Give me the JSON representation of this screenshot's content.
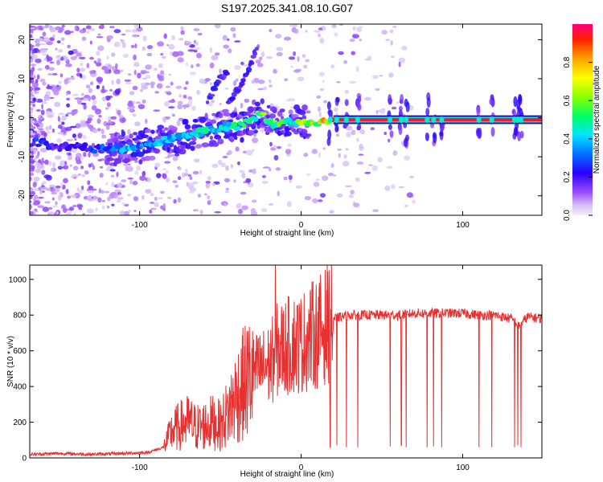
{
  "title": "S197.2025.341.08.10.G07",
  "chart_data": [
    {
      "type": "heatmap",
      "name": "spectrogram",
      "title": "S197.2025.341.08.10.G07",
      "xlabel": "Height of straight line (km)",
      "ylabel": "Frequency (Hz)",
      "xlim": [
        -168,
        149
      ],
      "ylim": [
        -25,
        24
      ],
      "xticks": [
        -100,
        0,
        100
      ],
      "yticks": [
        -20,
        -10,
        0,
        10,
        20
      ],
      "ridge": {
        "x": [
          -165,
          -150,
          -140,
          -130,
          -115,
          -105,
          -95,
          -85,
          -75,
          -65,
          -55,
          -45,
          -38,
          -30,
          -25,
          -20,
          -15,
          -10,
          -5,
          0,
          5,
          10,
          20,
          40,
          60,
          80,
          100,
          120,
          140,
          149
        ],
        "y": [
          -6,
          -8,
          -7,
          -8,
          -8,
          -8,
          -7,
          -6,
          -5,
          -4,
          -3,
          -2,
          -2,
          0,
          1,
          -1,
          -2,
          -1,
          -1,
          -1,
          -1,
          -1,
          -1,
          -0.5,
          -0.5,
          -0.5,
          -0.5,
          -0.5,
          -0.5,
          -0.5
        ],
        "amplitude": [
          0.3,
          0.2,
          0.2,
          0.25,
          0.35,
          0.4,
          0.35,
          0.4,
          0.45,
          0.5,
          0.45,
          0.45,
          0.5,
          0.55,
          0.6,
          0.55,
          0.6,
          0.5,
          0.55,
          0.6,
          0.65,
          0.7,
          0.9,
          0.92,
          0.95,
          0.95,
          0.95,
          0.95,
          0.95,
          0.95
        ]
      },
      "branches": [
        {
          "x": [
            -45,
            -38,
            -32,
            -27
          ],
          "y": [
            4,
            8,
            13,
            18
          ]
        },
        {
          "x": [
            -58,
            -52,
            -46
          ],
          "y": [
            4,
            9,
            12
          ]
        }
      ],
      "colorbar": {
        "label": "Normalized spectral amplitude",
        "range": [
          0,
          1
        ],
        "ticks": [
          0.0,
          0.2,
          0.4,
          0.6,
          0.8
        ],
        "tick_labels": [
          "0.0",
          "0.2",
          "0.4",
          "0.6",
          "0.8"
        ]
      }
    },
    {
      "type": "line",
      "name": "snr",
      "xlabel": "Height of straight line (km)",
      "ylabel": "SNR (10 * v/v)",
      "xlim": [
        -168,
        149
      ],
      "ylim": [
        0,
        1080
      ],
      "xticks": [
        -100,
        0,
        100
      ],
      "yticks": [
        0,
        200,
        400,
        600,
        800,
        1000
      ],
      "color": "#e83030",
      "series": [
        {
          "name": "SNR",
          "x": [
            -168,
            -150,
            -130,
            -110,
            -95,
            -85,
            -80,
            -75,
            -70,
            -65,
            -60,
            -55,
            -50,
            -45,
            -40,
            -35,
            -30,
            -25,
            -20,
            -17,
            -15,
            -10,
            -5,
            0,
            5,
            10,
            15,
            20,
            25,
            30,
            40,
            50,
            60,
            70,
            80,
            90,
            100,
            110,
            120,
            130,
            135,
            140,
            149
          ],
          "y": [
            20,
            25,
            20,
            25,
            30,
            60,
            150,
            180,
            200,
            170,
            180,
            200,
            180,
            260,
            350,
            420,
            470,
            500,
            520,
            560,
            600,
            620,
            640,
            640,
            680,
            700,
            740,
            780,
            790,
            800,
            800,
            800,
            800,
            810,
            810,
            810,
            810,
            800,
            800,
            780,
            740,
            790,
            780
          ]
        }
      ],
      "dropouts": {
        "x": [
          18,
          22,
          28,
          35,
          55,
          62,
          65,
          78,
          82,
          87,
          110,
          118,
          132,
          134,
          136
        ],
        "y": [
          60,
          70,
          60,
          60,
          65,
          70,
          60,
          60,
          65,
          60,
          60,
          60,
          60,
          70,
          60
        ]
      },
      "spike": {
        "x": -16,
        "y": 1080
      }
    }
  ]
}
